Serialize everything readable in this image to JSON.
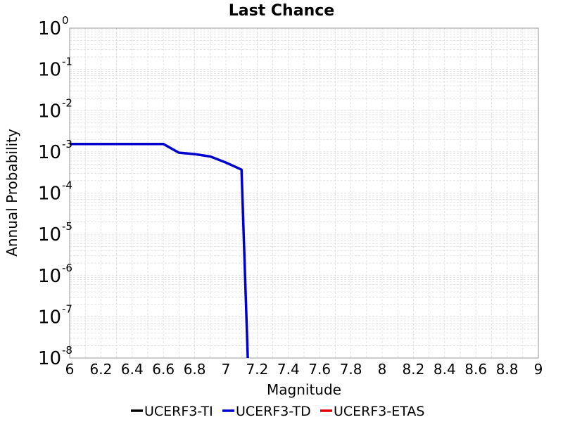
{
  "chart_data": {
    "type": "line",
    "title": "Last Chance",
    "xlabel": "Magnitude",
    "ylabel": "Annual Probability",
    "xlim": [
      6,
      9
    ],
    "ylim": [
      1e-08,
      1
    ],
    "y_scale": "log",
    "grid": true,
    "legend_position": "bottom",
    "x_ticks": [
      "6",
      "6.2",
      "6.4",
      "6.6",
      "6.8",
      "7",
      "7.2",
      "7.4",
      "7.6",
      "7.8",
      "8",
      "8.2",
      "8.4",
      "8.6",
      "8.8",
      "9"
    ],
    "y_ticks": [
      {
        "base": "10",
        "exp": "0",
        "value": 1
      },
      {
        "base": "10",
        "exp": "-1",
        "value": 0.1
      },
      {
        "base": "10",
        "exp": "-2",
        "value": 0.01
      },
      {
        "base": "10",
        "exp": "-3",
        "value": 0.001
      },
      {
        "base": "10",
        "exp": "-4",
        "value": 0.0001
      },
      {
        "base": "10",
        "exp": "-5",
        "value": 1e-05
      },
      {
        "base": "10",
        "exp": "-6",
        "value": 1e-06
      },
      {
        "base": "10",
        "exp": "-7",
        "value": 1e-07
      },
      {
        "base": "10",
        "exp": "-8",
        "value": 1e-08
      }
    ],
    "series": [
      {
        "name": "UCERF3-TI",
        "color": "#000000",
        "x": [],
        "y": []
      },
      {
        "name": "UCERF3-TD",
        "color": "#0000cc",
        "x": [
          6.0,
          6.1,
          6.2,
          6.3,
          6.4,
          6.5,
          6.6,
          6.7,
          6.8,
          6.9,
          7.0,
          7.1,
          7.14
        ],
        "y": [
          0.00155,
          0.00155,
          0.00155,
          0.00155,
          0.00155,
          0.00155,
          0.00155,
          0.00095,
          0.00088,
          0.00077,
          0.00055,
          0.00037,
          1e-08
        ]
      },
      {
        "name": "UCERF3-ETAS",
        "color": "#dd0000",
        "x": [],
        "y": []
      }
    ]
  }
}
